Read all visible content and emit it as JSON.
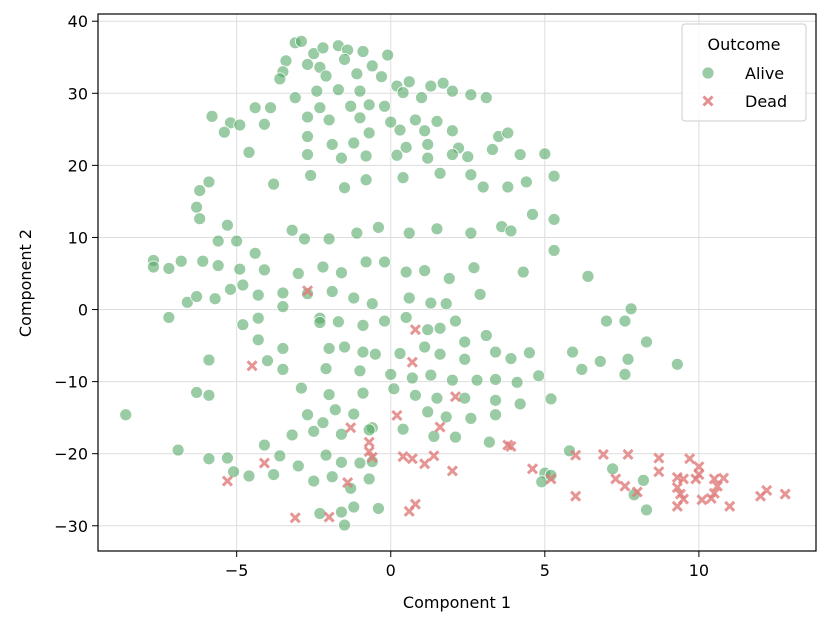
{
  "chart_data": {
    "type": "scatter",
    "title": "",
    "xlabel": "Component 1",
    "ylabel": "Component 2",
    "xlim": [
      -9.5,
      13.8
    ],
    "ylim": [
      -33.5,
      41
    ],
    "xticks": [
      -5,
      0,
      5,
      10
    ],
    "yticks": [
      -30,
      -20,
      -10,
      0,
      10,
      20,
      30,
      40
    ],
    "grid": true,
    "legend": {
      "title": "Outcome",
      "placement": "top-right"
    },
    "series": [
      {
        "name": "Alive",
        "marker": "circle",
        "color": "#55a868",
        "points": [
          [
            -3.1,
            37
          ],
          [
            -2.9,
            37.2
          ],
          [
            -3.4,
            34.5
          ],
          [
            -3.5,
            33
          ],
          [
            -2.5,
            35.5
          ],
          [
            -2.2,
            36.3
          ],
          [
            -1.7,
            36.6
          ],
          [
            -1.4,
            36
          ],
          [
            -0.9,
            35.8
          ],
          [
            -0.1,
            35.3
          ],
          [
            -2.7,
            34
          ],
          [
            -2.3,
            33.6
          ],
          [
            -1.5,
            34.7
          ],
          [
            -2.1,
            32.4
          ],
          [
            -1.1,
            32.7
          ],
          [
            -0.6,
            33.8
          ],
          [
            -0.3,
            32.3
          ],
          [
            0.2,
            31
          ],
          [
            0.6,
            31.6
          ],
          [
            1.3,
            31
          ],
          [
            1.7,
            31.4
          ],
          [
            -3.6,
            32
          ],
          [
            -2.4,
            30.3
          ],
          [
            -1.7,
            30.5
          ],
          [
            -1.0,
            30.3
          ],
          [
            0.4,
            30.1
          ],
          [
            1.0,
            29.4
          ],
          [
            2.0,
            30.3
          ],
          [
            2.6,
            29.8
          ],
          [
            3.1,
            29.4
          ],
          [
            -3.1,
            29.4
          ],
          [
            -2.3,
            28
          ],
          [
            -1.3,
            28.2
          ],
          [
            -0.7,
            28.4
          ],
          [
            -0.2,
            28.2
          ],
          [
            -2.7,
            26.7
          ],
          [
            -2.0,
            26.3
          ],
          [
            -1.0,
            26.6
          ],
          [
            0.0,
            26
          ],
          [
            0.8,
            26.3
          ],
          [
            1.5,
            26.1
          ],
          [
            -0.7,
            24.5
          ],
          [
            0.3,
            24.9
          ],
          [
            1.1,
            24.8
          ],
          [
            2.0,
            24.8
          ],
          [
            3.5,
            24
          ],
          [
            3.8,
            24.5
          ],
          [
            -2.7,
            24
          ],
          [
            -1.9,
            22.9
          ],
          [
            -1.2,
            23.1
          ],
          [
            0.5,
            22.5
          ],
          [
            1.2,
            22.9
          ],
          [
            2.2,
            22.4
          ],
          [
            -5.8,
            26.8
          ],
          [
            -5.2,
            25.9
          ],
          [
            -5.4,
            24.6
          ],
          [
            -4.9,
            25.6
          ],
          [
            -4.4,
            28
          ],
          [
            -3.9,
            28
          ],
          [
            -4.1,
            25.7
          ],
          [
            -4.6,
            21.8
          ],
          [
            -2.7,
            21.5
          ],
          [
            -1.6,
            21
          ],
          [
            -0.8,
            21.3
          ],
          [
            0.2,
            21.4
          ],
          [
            1.2,
            21
          ],
          [
            2.0,
            21.5
          ],
          [
            2.5,
            21.2
          ],
          [
            3.3,
            22.2
          ],
          [
            4.2,
            21.5
          ],
          [
            5.0,
            21.6
          ],
          [
            -6.2,
            16.5
          ],
          [
            -5.9,
            17.7
          ],
          [
            -6.3,
            14.2
          ],
          [
            -6.2,
            12.6
          ],
          [
            -5.3,
            11.7
          ],
          [
            -3.8,
            17.4
          ],
          [
            -2.6,
            18.6
          ],
          [
            -1.5,
            16.9
          ],
          [
            -0.8,
            18
          ],
          [
            0.4,
            18.3
          ],
          [
            1.6,
            18.9
          ],
          [
            2.6,
            18.7
          ],
          [
            3.0,
            17
          ],
          [
            3.8,
            17
          ],
          [
            4.4,
            17.7
          ],
          [
            5.3,
            18.5
          ],
          [
            -5.6,
            9.5
          ],
          [
            -5.0,
            9.5
          ],
          [
            -4.4,
            7.8
          ],
          [
            -3.2,
            11
          ],
          [
            -2.8,
            9.8
          ],
          [
            -2.0,
            9.8
          ],
          [
            -1.1,
            10.6
          ],
          [
            -0.4,
            11.4
          ],
          [
            0.6,
            10.6
          ],
          [
            1.5,
            11.2
          ],
          [
            2.6,
            10.6
          ],
          [
            3.6,
            11.5
          ],
          [
            3.9,
            10.9
          ],
          [
            4.6,
            13.2
          ],
          [
            5.3,
            12.5
          ],
          [
            5.3,
            8.2
          ],
          [
            -7.7,
            6.8
          ],
          [
            -7.7,
            5.9
          ],
          [
            -7.2,
            5.7
          ],
          [
            -6.8,
            6.7
          ],
          [
            -6.1,
            6.7
          ],
          [
            -5.6,
            6.1
          ],
          [
            -4.9,
            5.6
          ],
          [
            -4.1,
            5.5
          ],
          [
            -3.0,
            5
          ],
          [
            -2.2,
            5.9
          ],
          [
            -1.6,
            5.1
          ],
          [
            -0.8,
            6.6
          ],
          [
            -0.2,
            6.6
          ],
          [
            0.5,
            5.2
          ],
          [
            1.1,
            5.4
          ],
          [
            1.9,
            4.3
          ],
          [
            2.7,
            5.8
          ],
          [
            4.3,
            5.2
          ],
          [
            -6.6,
            1
          ],
          [
            -6.3,
            1.8
          ],
          [
            -5.7,
            1.5
          ],
          [
            -5.2,
            2.8
          ],
          [
            -4.8,
            3.4
          ],
          [
            -4.3,
            2
          ],
          [
            -3.5,
            2.3
          ],
          [
            -2.7,
            2.2
          ],
          [
            -1.9,
            2.5
          ],
          [
            -1.2,
            1.6
          ],
          [
            -0.6,
            0.8
          ],
          [
            0.6,
            1.6
          ],
          [
            1.3,
            0.9
          ],
          [
            1.8,
            0.8
          ],
          [
            2.9,
            2.1
          ],
          [
            6.4,
            4.6
          ],
          [
            -7.2,
            -1.1
          ],
          [
            -4.8,
            -2.1
          ],
          [
            -4.3,
            -1.2
          ],
          [
            -3.5,
            0.4
          ],
          [
            -2.3,
            -1.2
          ],
          [
            -2.3,
            -1.8
          ],
          [
            -1.7,
            -1.7
          ],
          [
            -0.9,
            -2.2
          ],
          [
            -0.2,
            -1.6
          ],
          [
            0.5,
            -1.1
          ],
          [
            1.2,
            -2.8
          ],
          [
            1.6,
            -2.6
          ],
          [
            2.1,
            -1.6
          ],
          [
            2.4,
            -4.5
          ],
          [
            3.1,
            -3.6
          ],
          [
            7.0,
            -1.6
          ],
          [
            7.6,
            -1.6
          ],
          [
            7.8,
            0.1
          ],
          [
            -4.3,
            -4.2
          ],
          [
            -3.5,
            -5.4
          ],
          [
            -2.0,
            -5.4
          ],
          [
            -1.5,
            -5.2
          ],
          [
            -0.9,
            -5.9
          ],
          [
            -0.5,
            -6.2
          ],
          [
            0.3,
            -6.1
          ],
          [
            1.1,
            -5.2
          ],
          [
            1.6,
            -6.2
          ],
          [
            2.4,
            -6.9
          ],
          [
            3.4,
            -5.9
          ],
          [
            3.9,
            -6.8
          ],
          [
            4.5,
            -6
          ],
          [
            5.9,
            -5.9
          ],
          [
            6.8,
            -7.2
          ],
          [
            7.7,
            -6.9
          ],
          [
            8.3,
            -4.5
          ],
          [
            9.3,
            -7.6
          ],
          [
            -5.9,
            -7
          ],
          [
            -4.0,
            -7.1
          ],
          [
            -3.5,
            -8.3
          ],
          [
            -2.1,
            -8.2
          ],
          [
            -1.0,
            -8.5
          ],
          [
            0.0,
            -9
          ],
          [
            0.7,
            -9.5
          ],
          [
            1.3,
            -9.1
          ],
          [
            2.0,
            -9.8
          ],
          [
            2.8,
            -9.8
          ],
          [
            3.4,
            -9.7
          ],
          [
            4.1,
            -10.1
          ],
          [
            4.8,
            -9.2
          ],
          [
            5.2,
            -12.4
          ],
          [
            6.2,
            -8.3
          ],
          [
            7.6,
            -9
          ],
          [
            -6.3,
            -11.5
          ],
          [
            -5.9,
            -11.9
          ],
          [
            -2.9,
            -10.9
          ],
          [
            -2.0,
            -11.8
          ],
          [
            -0.9,
            -11.6
          ],
          [
            0.1,
            -11
          ],
          [
            0.8,
            -11.9
          ],
          [
            1.5,
            -12.3
          ],
          [
            2.4,
            -12.3
          ],
          [
            3.4,
            -12.6
          ],
          [
            4.2,
            -13.1
          ],
          [
            -8.6,
            -14.6
          ],
          [
            -2.7,
            -14.6
          ],
          [
            -2.2,
            -15.7
          ],
          [
            -1.8,
            -13.9
          ],
          [
            -1.2,
            -14.5
          ],
          [
            -0.6,
            -16.4
          ],
          [
            1.2,
            -14.2
          ],
          [
            1.8,
            -14.9
          ],
          [
            2.6,
            -15.1
          ],
          [
            3.4,
            -14.6
          ],
          [
            -6.9,
            -19.5
          ],
          [
            -4.1,
            -18.8
          ],
          [
            -3.2,
            -17.4
          ],
          [
            -2.5,
            -16.9
          ],
          [
            -1.6,
            -17.3
          ],
          [
            -0.7,
            -16.7
          ],
          [
            0.4,
            -16.6
          ],
          [
            1.4,
            -17.6
          ],
          [
            2.1,
            -17.7
          ],
          [
            3.2,
            -18.4
          ],
          [
            -5.9,
            -20.7
          ],
          [
            -5.3,
            -20.6
          ],
          [
            -3.6,
            -20.3
          ],
          [
            -3.0,
            -21.7
          ],
          [
            -2.1,
            -20.2
          ],
          [
            -1.6,
            -21.2
          ],
          [
            -1.0,
            -21.3
          ],
          [
            -0.6,
            -21.1
          ],
          [
            -5.1,
            -22.5
          ],
          [
            -4.6,
            -23.1
          ],
          [
            -3.8,
            -22.9
          ],
          [
            -2.5,
            -23.8
          ],
          [
            -1.9,
            -23.2
          ],
          [
            -1.3,
            -24.8
          ],
          [
            -0.7,
            -23.5
          ],
          [
            5.0,
            -22.7
          ],
          [
            4.9,
            -23.9
          ],
          [
            5.2,
            -23
          ],
          [
            7.2,
            -22.1
          ],
          [
            8.2,
            -23.7
          ],
          [
            7.9,
            -25.7
          ],
          [
            8.3,
            -27.8
          ],
          [
            -2.3,
            -28.3
          ],
          [
            -1.6,
            -28.1
          ],
          [
            -1.5,
            -29.9
          ],
          [
            -1.2,
            -27.4
          ],
          [
            -0.4,
            -27.6
          ],
          [
            5.8,
            -19.6
          ]
        ]
      },
      {
        "name": "Dead",
        "marker": "x",
        "color": "#e07b7b",
        "points": [
          [
            -4.5,
            -7.8
          ],
          [
            -2.7,
            2.6
          ],
          [
            0.8,
            -2.8
          ],
          [
            0.7,
            -7.3
          ],
          [
            2.1,
            -12.1
          ],
          [
            0.2,
            -14.7
          ],
          [
            -1.3,
            -16.4
          ],
          [
            -0.7,
            -18.4
          ],
          [
            1.6,
            -16.3
          ],
          [
            3.8,
            -18.8
          ],
          [
            3.9,
            -19
          ],
          [
            -0.7,
            -19.7
          ],
          [
            -0.6,
            -20.5
          ],
          [
            0.4,
            -20.4
          ],
          [
            0.7,
            -20.7
          ],
          [
            1.1,
            -21.4
          ],
          [
            1.4,
            -20.3
          ],
          [
            -4.1,
            -21.3
          ],
          [
            2.0,
            -22.4
          ],
          [
            4.6,
            -22.1
          ],
          [
            5.2,
            -23.5
          ],
          [
            -5.3,
            -23.8
          ],
          [
            -1.4,
            -24
          ],
          [
            6.0,
            -20.2
          ],
          [
            6.9,
            -20.1
          ],
          [
            7.7,
            -20.1
          ],
          [
            8.7,
            -20.6
          ],
          [
            9.7,
            -20.7
          ],
          [
            10.0,
            -21.8
          ],
          [
            7.3,
            -23.5
          ],
          [
            7.6,
            -24.5
          ],
          [
            8.0,
            -25.3
          ],
          [
            8.7,
            -22.5
          ],
          [
            9.3,
            -23.3
          ],
          [
            9.5,
            -23.5
          ],
          [
            9.9,
            -23.5
          ],
          [
            10.0,
            -22.9
          ],
          [
            10.5,
            -23.5
          ],
          [
            10.8,
            -23.4
          ],
          [
            9.3,
            -24.7
          ],
          [
            9.4,
            -25.6
          ],
          [
            9.5,
            -26.3
          ],
          [
            9.3,
            -27.3
          ],
          [
            10.1,
            -26.4
          ],
          [
            10.4,
            -26.2
          ],
          [
            10.5,
            -25.5
          ],
          [
            10.6,
            -24.5
          ],
          [
            11.0,
            -27.3
          ],
          [
            12.0,
            -25.9
          ],
          [
            12.2,
            -25.1
          ],
          [
            12.8,
            -25.6
          ],
          [
            6.0,
            -25.9
          ],
          [
            -3.1,
            -28.9
          ],
          [
            -2.0,
            -28.8
          ],
          [
            0.6,
            -28
          ],
          [
            0.8,
            -27
          ]
        ]
      }
    ]
  }
}
